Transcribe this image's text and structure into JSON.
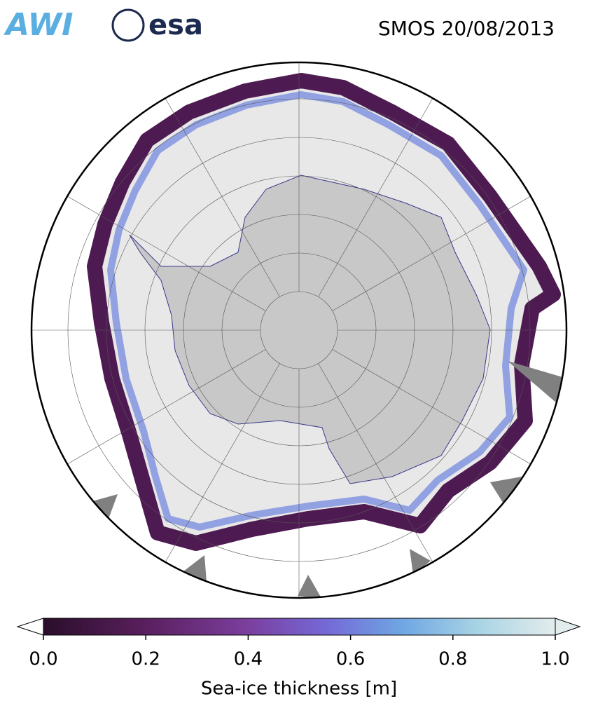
{
  "header": {
    "logos": [
      "AWI",
      "esa"
    ],
    "title": "SMOS 20/08/2013"
  },
  "colorbar": {
    "label": "Sea-ice thickness [m]",
    "lim": [
      0,
      1
    ],
    "ticks": [
      {
        "value": 0,
        "label": "0.0"
      },
      0.2,
      0.4,
      0.6,
      0.8,
      {
        "value": 1,
        "label": "1.0"
      }
    ]
  }
}
